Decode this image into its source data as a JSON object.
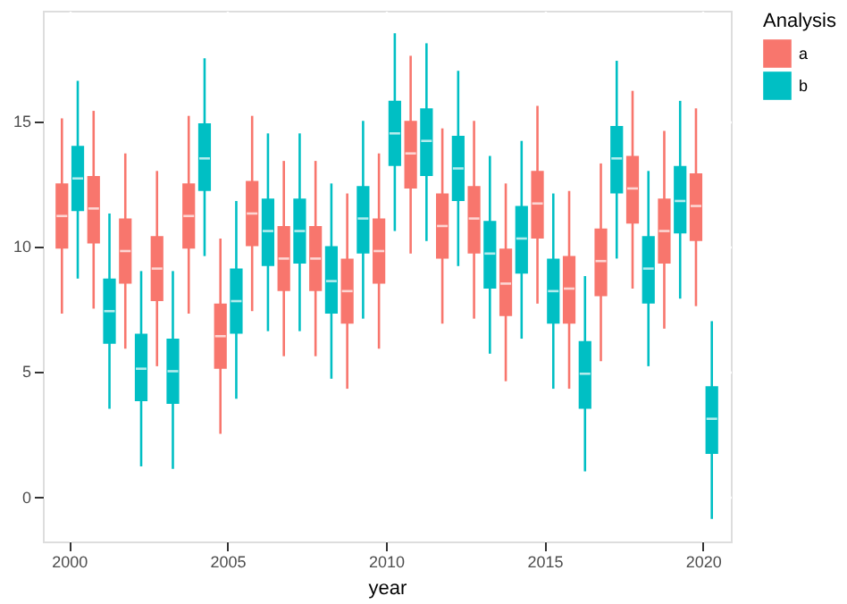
{
  "chart_data": {
    "type": "box",
    "xlabel": "year",
    "legend_title": "Analysis",
    "legend": "right",
    "grid": true,
    "categories": [
      "2000",
      null,
      null,
      null,
      null,
      "2005",
      null,
      null,
      null,
      null,
      "2010",
      null,
      null,
      null,
      null,
      "2015",
      null,
      null,
      null,
      null,
      "2020"
    ],
    "ylim": [
      -1.8,
      19.4
    ],
    "yticks": [
      0,
      5,
      10,
      15
    ],
    "series": [
      {
        "name": "a",
        "color": "#f8766d",
        "boxes": [
          {
            "low": 7.3,
            "q1": 9.9,
            "median": 11.2,
            "q3": 12.5,
            "high": 15.1
          },
          {
            "low": 7.5,
            "q1": 10.1,
            "median": 11.5,
            "q3": 12.8,
            "high": 15.4
          },
          {
            "low": 5.9,
            "q1": 8.5,
            "median": 9.8,
            "q3": 11.1,
            "high": 13.7
          },
          {
            "low": 5.2,
            "q1": 7.8,
            "median": 9.1,
            "q3": 10.4,
            "high": 13.0
          },
          {
            "low": 7.3,
            "q1": 9.9,
            "median": 11.2,
            "q3": 12.5,
            "high": 15.2
          },
          {
            "low": 2.5,
            "q1": 5.1,
            "median": 6.4,
            "q3": 7.7,
            "high": 10.3
          },
          {
            "low": 7.4,
            "q1": 10.0,
            "median": 11.3,
            "q3": 12.6,
            "high": 15.2
          },
          {
            "low": 5.6,
            "q1": 8.2,
            "median": 9.5,
            "q3": 10.8,
            "high": 13.4
          },
          {
            "low": 5.6,
            "q1": 8.2,
            "median": 9.5,
            "q3": 10.8,
            "high": 13.4
          },
          {
            "low": 4.3,
            "q1": 6.9,
            "median": 8.2,
            "q3": 9.5,
            "high": 12.1
          },
          {
            "low": 5.9,
            "q1": 8.5,
            "median": 9.8,
            "q3": 11.1,
            "high": 13.7
          },
          {
            "low": 9.7,
            "q1": 12.3,
            "median": 13.7,
            "q3": 15.0,
            "high": 17.6
          },
          {
            "low": 6.9,
            "q1": 9.5,
            "median": 10.8,
            "q3": 12.1,
            "high": 14.7
          },
          {
            "low": 7.1,
            "q1": 9.7,
            "median": 11.1,
            "q3": 12.4,
            "high": 15.0
          },
          {
            "low": 4.6,
            "q1": 7.2,
            "median": 8.5,
            "q3": 9.9,
            "high": 12.5
          },
          {
            "low": 7.7,
            "q1": 10.3,
            "median": 11.7,
            "q3": 13.0,
            "high": 15.6
          },
          {
            "low": 4.3,
            "q1": 6.9,
            "median": 8.3,
            "q3": 9.6,
            "high": 12.2
          },
          {
            "low": 5.4,
            "q1": 8.0,
            "median": 9.4,
            "q3": 10.7,
            "high": 13.3
          },
          {
            "low": 8.3,
            "q1": 10.9,
            "median": 12.3,
            "q3": 13.6,
            "high": 16.2
          },
          {
            "low": 6.7,
            "q1": 9.3,
            "median": 10.6,
            "q3": 11.9,
            "high": 14.6
          },
          {
            "low": 7.6,
            "q1": 10.2,
            "median": 11.6,
            "q3": 12.9,
            "high": 15.5
          }
        ]
      },
      {
        "name": "b",
        "color": "#00bfc4",
        "boxes": [
          {
            "low": 8.7,
            "q1": 11.4,
            "median": 12.7,
            "q3": 14.0,
            "high": 16.6
          },
          {
            "low": 3.5,
            "q1": 6.1,
            "median": 7.4,
            "q3": 8.7,
            "high": 11.3
          },
          {
            "low": 1.2,
            "q1": 3.8,
            "median": 5.1,
            "q3": 6.5,
            "high": 9.0
          },
          {
            "low": 1.1,
            "q1": 3.7,
            "median": 5.0,
            "q3": 6.3,
            "high": 9.0
          },
          {
            "low": 9.6,
            "q1": 12.2,
            "median": 13.5,
            "q3": 14.9,
            "high": 17.5
          },
          {
            "low": 3.9,
            "q1": 6.5,
            "median": 7.8,
            "q3": 9.1,
            "high": 11.8
          },
          {
            "low": 6.6,
            "q1": 9.2,
            "median": 10.6,
            "q3": 11.9,
            "high": 14.5
          },
          {
            "low": 6.6,
            "q1": 9.3,
            "median": 10.6,
            "q3": 11.9,
            "high": 14.5
          },
          {
            "low": 4.7,
            "q1": 7.3,
            "median": 8.6,
            "q3": 10.0,
            "high": 12.5
          },
          {
            "low": 7.1,
            "q1": 9.7,
            "median": 11.1,
            "q3": 12.4,
            "high": 15.0
          },
          {
            "low": 10.6,
            "q1": 13.2,
            "median": 14.5,
            "q3": 15.8,
            "high": 18.5
          },
          {
            "low": 10.2,
            "q1": 12.8,
            "median": 14.2,
            "q3": 15.5,
            "high": 18.1
          },
          {
            "low": 9.2,
            "q1": 11.8,
            "median": 13.1,
            "q3": 14.4,
            "high": 17.0
          },
          {
            "low": 5.7,
            "q1": 8.3,
            "median": 9.7,
            "q3": 11.0,
            "high": 13.6
          },
          {
            "low": 6.3,
            "q1": 8.9,
            "median": 10.3,
            "q3": 11.6,
            "high": 14.2
          },
          {
            "low": 4.3,
            "q1": 6.9,
            "median": 8.2,
            "q3": 9.5,
            "high": 12.1
          },
          {
            "low": 1.0,
            "q1": 3.5,
            "median": 4.9,
            "q3": 6.2,
            "high": 8.8
          },
          {
            "low": 9.5,
            "q1": 12.1,
            "median": 13.5,
            "q3": 14.8,
            "high": 17.4
          },
          {
            "low": 5.2,
            "q1": 7.7,
            "median": 9.1,
            "q3": 10.4,
            "high": 13.0
          },
          {
            "low": 7.9,
            "q1": 10.5,
            "median": 11.8,
            "q3": 13.2,
            "high": 15.8
          },
          {
            "low": -0.9,
            "q1": 1.7,
            "median": 3.1,
            "q3": 4.4,
            "high": 7.0
          }
        ]
      }
    ]
  }
}
